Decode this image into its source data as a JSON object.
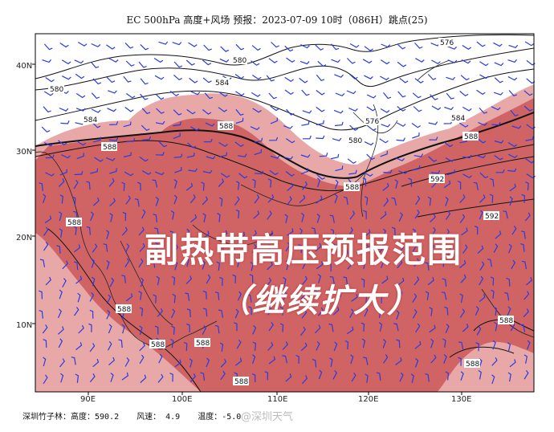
{
  "title": "EC 500hPa 高度+风场  预报：2023-07-09 10时（086H）跳点(25)",
  "overlay": {
    "main": "副热带高压预报范围",
    "sub": "（继续扩大）"
  },
  "axes": {
    "lat_labels": [
      "40N",
      "30N",
      "20N",
      "10N"
    ],
    "lon_labels": [
      "90E",
      "100E",
      "110E",
      "120E",
      "130E"
    ]
  },
  "contour_labels": [
    "576",
    "580",
    "580",
    "584",
    "584",
    "584",
    "588",
    "588",
    "588",
    "588",
    "588",
    "588",
    "588",
    "588",
    "588",
    "576",
    "580",
    "592",
    "592",
    "588",
    "588"
  ],
  "footer": {
    "station": "深圳竹子林：高度：590.2",
    "wind": "风速： 4.9",
    "temp": "温度：-5.0"
  },
  "watermark": "@深圳天气",
  "colors": {
    "high_pressure_fill": "#d06464",
    "high_pressure_halo": "#e8a8a8",
    "wind_barb": "#2a3be0",
    "contour": "#111111",
    "background": "#ffffff"
  }
}
